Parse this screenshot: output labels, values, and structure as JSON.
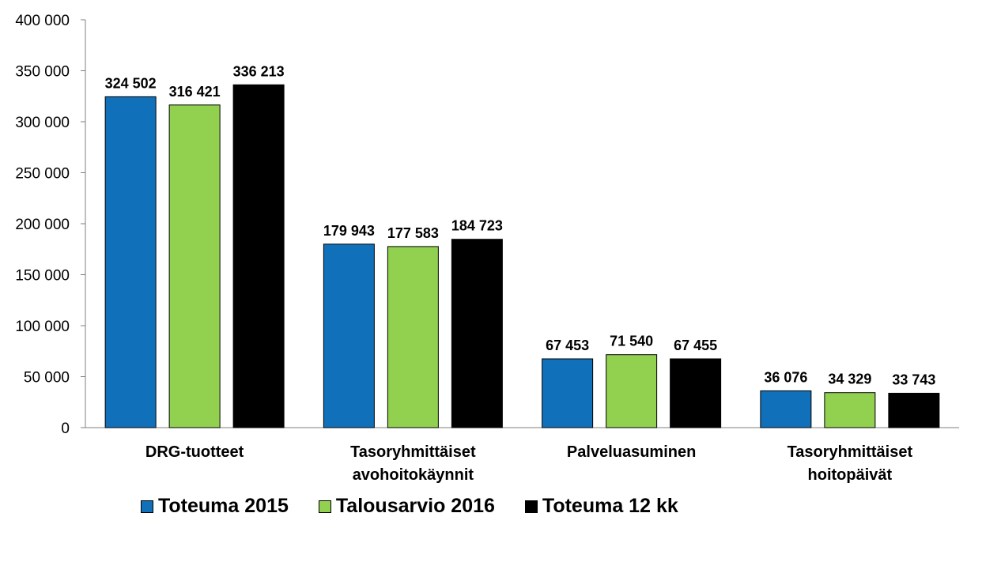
{
  "chart_data": {
    "type": "bar",
    "categories": [
      [
        "DRG-tuotteet"
      ],
      [
        "Tasoryhmittäiset",
        "avohoitokäynnit"
      ],
      [
        "Palveluasuminen"
      ],
      [
        "Tasoryhmittäiset",
        "hoitopäivät"
      ]
    ],
    "series": [
      {
        "name": "Toteuma 2015",
        "color": "#1070BA",
        "values": [
          324502,
          179943,
          67453,
          36076
        ],
        "labels": [
          "324 502",
          "179 943",
          "67 453",
          "36 076"
        ]
      },
      {
        "name": "Talousarvio 2016",
        "color": "#92D050",
        "values": [
          316421,
          177583,
          71540,
          34329
        ],
        "labels": [
          "316 421",
          "177 583",
          "71 540",
          "34 329"
        ]
      },
      {
        "name": "Toteuma 12 kk",
        "color": "#000000",
        "values": [
          336213,
          184723,
          67455,
          33743
        ],
        "labels": [
          "336 213",
          "184 723",
          "67 455",
          "33 743"
        ]
      }
    ],
    "ylim": [
      0,
      400000
    ],
    "yticks": [
      0,
      50000,
      100000,
      150000,
      200000,
      250000,
      300000,
      350000,
      400000
    ],
    "ytick_labels": [
      "0",
      "50 000",
      "100 000",
      "150 000",
      "200 000",
      "250 000",
      "300 000",
      "350 000",
      "400 000"
    ],
    "legend_position": "bottom",
    "grid": false
  }
}
